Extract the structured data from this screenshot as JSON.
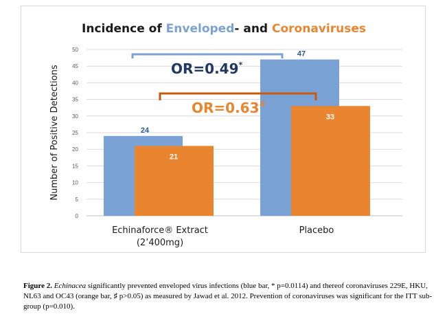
{
  "chart_data": {
    "type": "bar",
    "title_parts": [
      {
        "text": "Incidence of ",
        "color": "#1a1a1a"
      },
      {
        "text": "Enveloped",
        "color": "#7aa2d4"
      },
      {
        "text": "- and ",
        "color": "#1a1a1a"
      },
      {
        "text": "Coronaviruses",
        "color": "#e8852e"
      }
    ],
    "ylabel": "Number of Positive Detections",
    "ylim": [
      0,
      50
    ],
    "yticks": [
      "0",
      "5",
      "10",
      "15",
      "20",
      "25",
      "30",
      "35",
      "40",
      "45",
      "50"
    ],
    "grid": true,
    "categories": [
      {
        "line1": "Echinaforce® Extract",
        "line2": "(2’400mg)"
      },
      {
        "line1": "Placebo",
        "line2": ""
      }
    ],
    "series": [
      {
        "color": "#7aa2d4",
        "values": [
          24,
          47
        ],
        "value_labels": [
          "24",
          "47"
        ]
      },
      {
        "color": "#e8852e",
        "values": [
          21,
          33
        ],
        "value_labels": [
          "21",
          "33"
        ]
      }
    ],
    "annotations": [
      {
        "text": "OR=0.49",
        "sup": "*",
        "color": "#1f3864",
        "bracket_color": "#7aa2d4"
      },
      {
        "text": "OR=0.63",
        "sup": "#",
        "color": "#e8852e",
        "bracket_color": "#c55a11"
      }
    ]
  },
  "caption": {
    "label": "Figure 2.",
    "italic": "Echinacea",
    "text": " significantly prevented enveloped virus infections (blue bar, * p=0.0114) and thereof coronaviruses 229E, HKU, NL63 and OC43 (orange bar, ♯ p>0.05) as measured by Jawad et al. 2012. Prevention of coronaviruses was significant for the ITT sub-group (p=0.010)."
  }
}
